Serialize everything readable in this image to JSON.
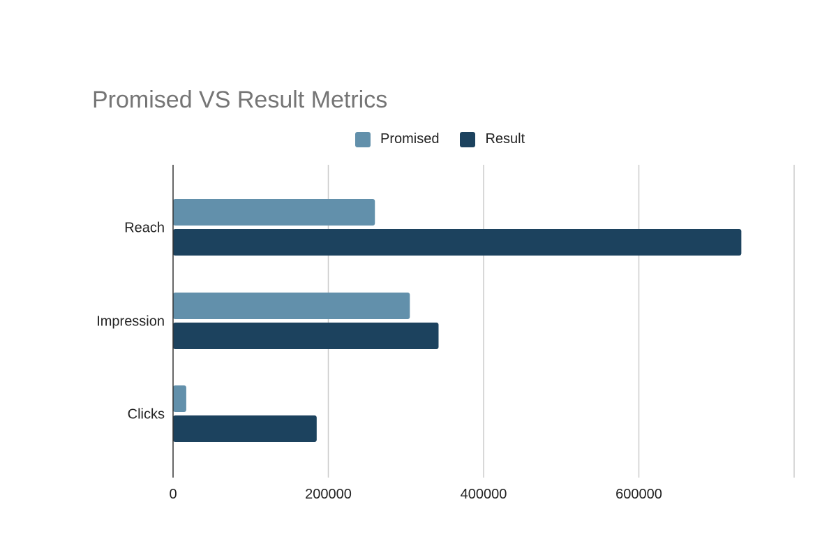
{
  "chart_data": {
    "type": "bar",
    "orientation": "horizontal",
    "title": "Promised VS Result Metrics",
    "categories": [
      "Reach",
      "Impression",
      "Clicks"
    ],
    "series": [
      {
        "name": "Promised",
        "color": "#6290AB",
        "values": [
          260000,
          305000,
          17000
        ]
      },
      {
        "name": "Result",
        "color": "#1C425E",
        "values": [
          732000,
          342000,
          185000
        ]
      }
    ],
    "xlabel": "",
    "ylabel": "",
    "xlim": [
      0,
      800000
    ],
    "xticks": [
      0,
      200000,
      400000,
      600000,
      800000
    ],
    "xtick_labels": [
      "0",
      "200000",
      "400000",
      "600000",
      ""
    ],
    "grid": true,
    "legend_position": "top"
  }
}
